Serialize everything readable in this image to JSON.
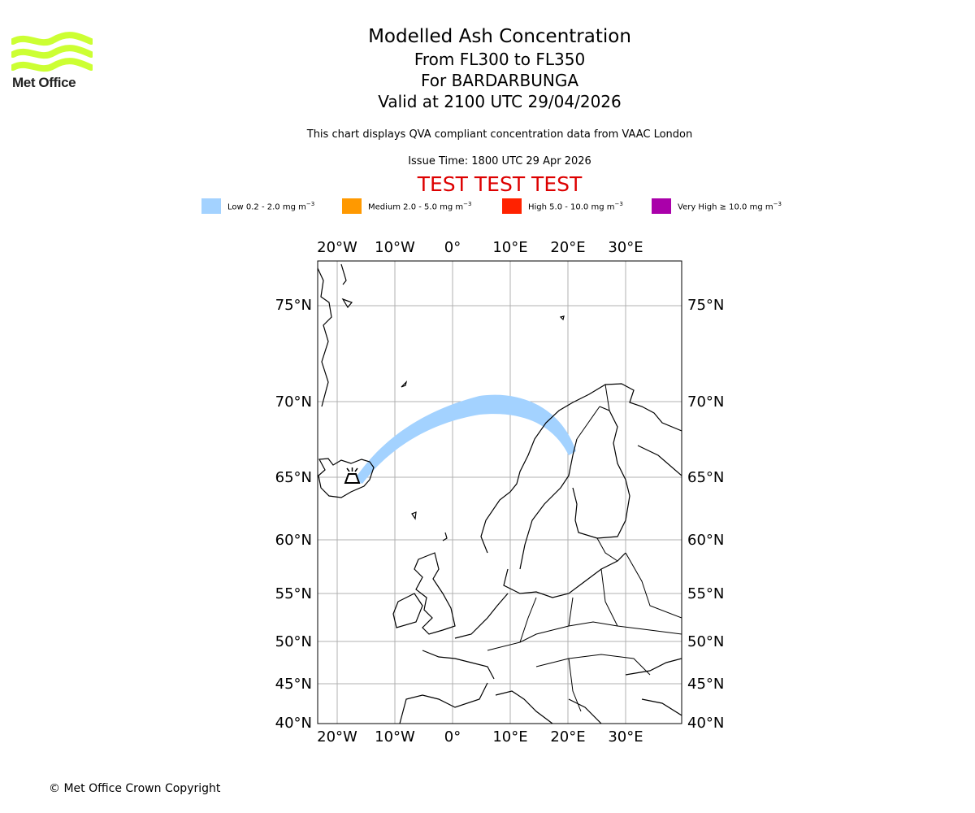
{
  "logo": {
    "text": "Met Office",
    "color": "#ccff33"
  },
  "title": {
    "main": "Modelled Ash Concentration",
    "levels": "From FL300 to FL350",
    "volcano": "For BARDARBUNGA",
    "valid": "Valid at 2100 UTC 29/04/2026"
  },
  "subtitle": "This chart displays QVA compliant concentration data from VAAC London",
  "issue_time": "Issue Time: 1800 UTC 29 Apr 2026",
  "test_banner": "TEST TEST TEST",
  "legend": [
    {
      "label": "Low 0.2 - 2.0 mg m",
      "sup": "−3",
      "color": "#a3d2ff"
    },
    {
      "label": "Medium 2.0 - 5.0 mg m",
      "sup": "−3",
      "color": "#ff9900"
    },
    {
      "label": "High 5.0 - 10.0 mg m",
      "sup": "−3",
      "color": "#ff2200"
    },
    {
      "label": "Very High  ≥  10.0 mg m",
      "sup": "−3",
      "color": "#aa00aa"
    }
  ],
  "map": {
    "lon_ticks": [
      "20°W",
      "10°W",
      "0°",
      "10°E",
      "20°E",
      "30°E"
    ],
    "lat_ticks": [
      "75°N",
      "70°N",
      "65°N",
      "60°N",
      "55°N",
      "50°N",
      "45°N",
      "40°N"
    ],
    "volcano_icon": "volcano-icon"
  },
  "copyright": "© Met Office Crown Copyright"
}
